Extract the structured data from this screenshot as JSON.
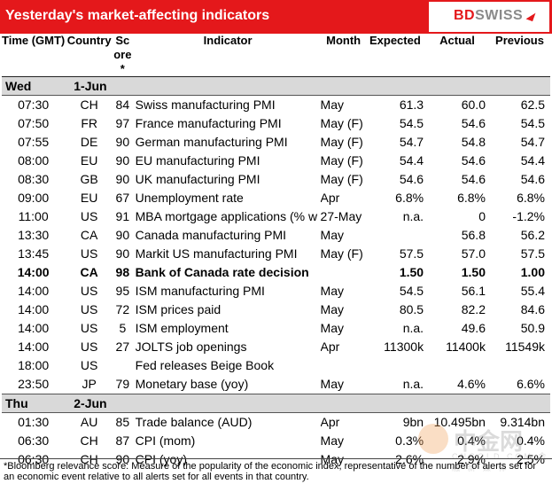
{
  "header": {
    "title": "Yesterday's market-affecting indicators",
    "logo_left": "BD",
    "logo_right": "SWISS"
  },
  "columns": {
    "time": "Time (GMT)",
    "country": "Country",
    "score": "Score*",
    "indicator": "Indicator",
    "month": "Month",
    "expected": "Expected",
    "actual": "Actual",
    "previous": "Previous"
  },
  "days": [
    {
      "dow": "Wed",
      "date": "1-Jun",
      "rows": [
        {
          "time": "07:30",
          "country": "CH",
          "score": "84",
          "indicator": "Swiss manufacturing PMI",
          "month": "May",
          "expected": "61.3",
          "actual": "60.0",
          "previous": "62.5",
          "bold": false
        },
        {
          "time": "07:50",
          "country": "FR",
          "score": "97",
          "indicator": "France manufacturing PMI",
          "month": "May (F)",
          "expected": "54.5",
          "actual": "54.6",
          "previous": "54.5",
          "bold": false
        },
        {
          "time": "07:55",
          "country": "DE",
          "score": "90",
          "indicator": "German manufacturing PMI",
          "month": "May (F)",
          "expected": "54.7",
          "actual": "54.8",
          "previous": "54.7",
          "bold": false
        },
        {
          "time": "08:00",
          "country": "EU",
          "score": "90",
          "indicator": "EU manufacturing PMI",
          "month": "May (F)",
          "expected": "54.4",
          "actual": "54.6",
          "previous": "54.4",
          "bold": false
        },
        {
          "time": "08:30",
          "country": "GB",
          "score": "90",
          "indicator": "UK manufacturing PMI",
          "month": "May (F)",
          "expected": "54.6",
          "actual": "54.6",
          "previous": "54.6",
          "bold": false
        },
        {
          "time": "09:00",
          "country": "EU",
          "score": "67",
          "indicator": "Unemployment rate",
          "month": "Apr",
          "expected": "6.8%",
          "actual": "6.8%",
          "previous": "6.8%",
          "bold": false
        },
        {
          "time": "11:00",
          "country": "US",
          "score": "91",
          "indicator": "MBA mortgage applications (% w",
          "month": "27-May",
          "expected": "n.a.",
          "actual": "0",
          "previous": "-1.2%",
          "bold": false
        },
        {
          "time": "13:30",
          "country": "CA",
          "score": "90",
          "indicator": "Canada manufacturing PMI",
          "month": "May",
          "expected": "",
          "actual": "56.8",
          "previous": "56.2",
          "bold": false
        },
        {
          "time": "13:45",
          "country": "US",
          "score": "90",
          "indicator": "Markit US manufacturing PMI",
          "month": "May (F)",
          "expected": "57.5",
          "actual": "57.0",
          "previous": "57.5",
          "bold": false
        },
        {
          "time": "14:00",
          "country": "CA",
          "score": "98",
          "indicator": "Bank of Canada rate decision",
          "month": "",
          "expected": "1.50",
          "actual": "1.50",
          "previous": "1.00",
          "bold": true
        },
        {
          "time": "14:00",
          "country": "US",
          "score": "95",
          "indicator": "ISM manufacturing PMI",
          "month": "May",
          "expected": "54.5",
          "actual": "56.1",
          "previous": "55.4",
          "bold": false
        },
        {
          "time": "14:00",
          "country": "US",
          "score": "72",
          "indicator": "ISM prices paid",
          "month": "May",
          "expected": "80.5",
          "actual": "82.2",
          "previous": "84.6",
          "bold": false
        },
        {
          "time": "14:00",
          "country": "US",
          "score": "5",
          "indicator": "ISM employment",
          "month": "May",
          "expected": "n.a.",
          "actual": "49.6",
          "previous": "50.9",
          "bold": false
        },
        {
          "time": "14:00",
          "country": "US",
          "score": "27",
          "indicator": "JOLTS job openings",
          "month": "Apr",
          "expected": "11300k",
          "actual": "11400k",
          "previous": "11549k",
          "bold": false
        },
        {
          "time": "18:00",
          "country": "US",
          "score": "",
          "indicator": "Fed releases Beige Book",
          "month": "",
          "expected": "",
          "actual": "",
          "previous": "",
          "bold": false
        },
        {
          "time": "23:50",
          "country": "JP",
          "score": "79",
          "indicator": "Monetary base (yoy)",
          "month": "May",
          "expected": "n.a.",
          "actual": "4.6%",
          "previous": "6.6%",
          "bold": false
        }
      ]
    },
    {
      "dow": "Thu",
      "date": "2-Jun",
      "rows": [
        {
          "time": "01:30",
          "country": "AU",
          "score": "85",
          "indicator": "Trade balance (AUD)",
          "month": "Apr",
          "expected": "9bn",
          "actual": "10.495bn",
          "previous": "9.314bn",
          "bold": false
        },
        {
          "time": "06:30",
          "country": "CH",
          "score": "87",
          "indicator": "CPI (mom)",
          "month": "May",
          "expected": "0.3%",
          "actual": "0.4%",
          "previous": "0.4%",
          "bold": false
        },
        {
          "time": "06:30",
          "country": "CH",
          "score": "90",
          "indicator": "CPI (yoy)",
          "month": "May",
          "expected": "2.6%",
          "actual": "2.9%",
          "previous": "2.5%",
          "bold": false
        }
      ]
    }
  ],
  "footnote": "*Bloomberg relevance score: Measure of the popularity of the economic index, representative of the number of alerts set for an economic event relative to all alerts set for all events in that country.",
  "watermark": {
    "text": "中金网",
    "sub": "CNGOLD.COM 金 融 新 媒 体"
  },
  "colors": {
    "brand_red": "#e4181b",
    "day_row_gray": "#d9d9d9"
  }
}
